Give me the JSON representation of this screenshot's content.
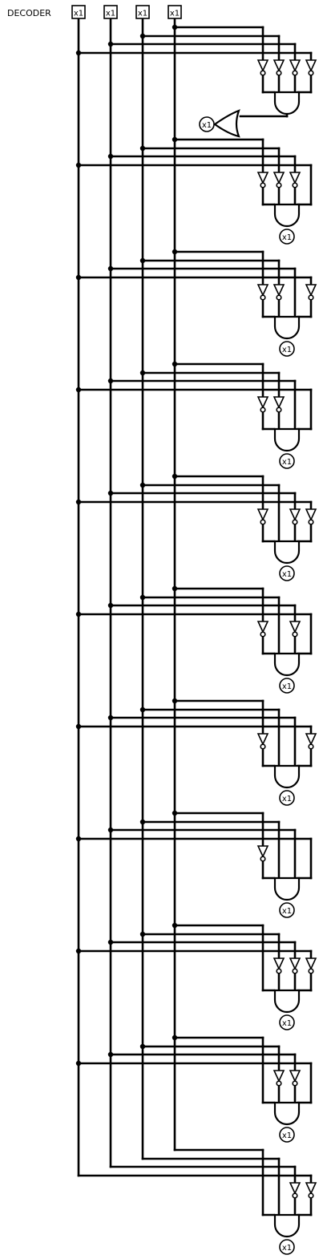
{
  "title": "DECODER",
  "input_label": "x1",
  "output_label": "x1",
  "inputs": 4,
  "decoders": [
    {
      "inv": [
        true,
        true,
        true,
        true
      ],
      "output": "or"
    },
    {
      "inv": [
        true,
        true,
        true,
        false
      ],
      "output": "pin"
    },
    {
      "inv": [
        true,
        true,
        false,
        true
      ],
      "output": "pin"
    },
    {
      "inv": [
        true,
        true,
        false,
        false
      ],
      "output": "pin"
    },
    {
      "inv": [
        true,
        false,
        true,
        true
      ],
      "output": "pin"
    },
    {
      "inv": [
        true,
        false,
        true,
        false
      ],
      "output": "pin"
    },
    {
      "inv": [
        true,
        false,
        false,
        true
      ],
      "output": "pin"
    },
    {
      "inv": [
        true,
        false,
        false,
        false
      ],
      "output": "pin"
    },
    {
      "inv": [
        false,
        true,
        true,
        true
      ],
      "output": "pin"
    },
    {
      "inv": [
        false,
        true,
        true,
        false
      ],
      "output": "pin"
    },
    {
      "inv": [
        false,
        false,
        true,
        true
      ],
      "output": "pin"
    }
  ]
}
